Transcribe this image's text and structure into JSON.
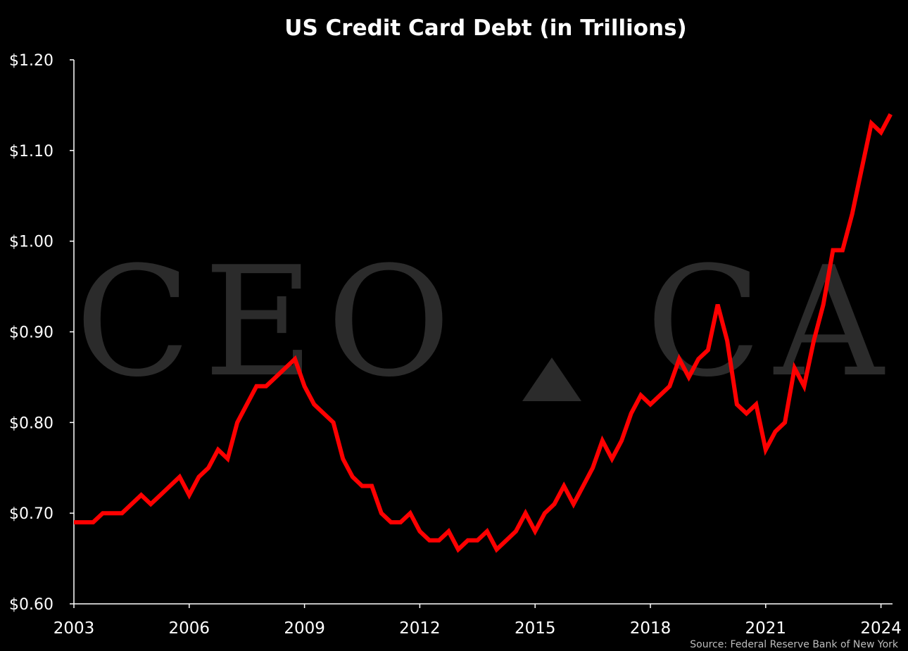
{
  "chart_data": {
    "type": "line",
    "title": "US Credit Card Debt (in Trillions)",
    "source": "Source: Federal Reserve Bank of New York",
    "watermark": "CEO CA",
    "line_color": "#ff0000",
    "background": "#000000",
    "xlim": [
      2003,
      2024.3
    ],
    "ylim": [
      0.6,
      1.2
    ],
    "x_ticks": [
      2003,
      2006,
      2009,
      2012,
      2015,
      2018,
      2021,
      2024
    ],
    "y_ticks": [
      0.6,
      0.7,
      0.8,
      0.9,
      1.0,
      1.1,
      1.2
    ],
    "y_tick_labels": [
      "$0.60",
      "$0.70",
      "$0.80",
      "$0.90",
      "$1.00",
      "$1.10",
      "$1.20"
    ],
    "x_tick_labels": [
      "2003",
      "2006",
      "2009",
      "2012",
      "2015",
      "2018",
      "2021",
      "2024"
    ],
    "grid": false,
    "series": [
      {
        "x": [
          2003.0,
          2003.25,
          2003.5,
          2003.75,
          2004.0,
          2004.25,
          2004.5,
          2004.75,
          2005.0,
          2005.25,
          2005.5,
          2005.75,
          2006.0,
          2006.25,
          2006.5,
          2006.75,
          2007.0,
          2007.25,
          2007.5,
          2007.75,
          2008.0,
          2008.25,
          2008.5,
          2008.75,
          2009.0,
          2009.25,
          2009.5,
          2009.75,
          2010.0,
          2010.25,
          2010.5,
          2010.75,
          2011.0,
          2011.25,
          2011.5,
          2011.75,
          2012.0,
          2012.25,
          2012.5,
          2012.75,
          2013.0,
          2013.25,
          2013.5,
          2013.75,
          2014.0,
          2014.25,
          2014.5,
          2014.75,
          2015.0,
          2015.25,
          2015.5,
          2015.75,
          2016.0,
          2016.25,
          2016.5,
          2016.75,
          2017.0,
          2017.25,
          2017.5,
          2017.75,
          2018.0,
          2018.25,
          2018.5,
          2018.75,
          2019.0,
          2019.25,
          2019.5,
          2019.75,
          2020.0,
          2020.25,
          2020.5,
          2020.75,
          2021.0,
          2021.25,
          2021.5,
          2021.75,
          2022.0,
          2022.25,
          2022.5,
          2022.75,
          2023.0,
          2023.25,
          2023.5,
          2023.75,
          2024.0,
          2024.25
        ],
        "values": [
          0.69,
          0.69,
          0.69,
          0.7,
          0.7,
          0.7,
          0.71,
          0.72,
          0.71,
          0.72,
          0.73,
          0.74,
          0.72,
          0.74,
          0.75,
          0.77,
          0.76,
          0.8,
          0.82,
          0.84,
          0.84,
          0.85,
          0.86,
          0.87,
          0.84,
          0.82,
          0.81,
          0.8,
          0.76,
          0.74,
          0.73,
          0.73,
          0.7,
          0.69,
          0.69,
          0.7,
          0.68,
          0.67,
          0.67,
          0.68,
          0.66,
          0.67,
          0.67,
          0.68,
          0.66,
          0.67,
          0.68,
          0.7,
          0.68,
          0.7,
          0.71,
          0.73,
          0.71,
          0.73,
          0.75,
          0.78,
          0.76,
          0.78,
          0.81,
          0.83,
          0.82,
          0.83,
          0.84,
          0.87,
          0.85,
          0.87,
          0.88,
          0.93,
          0.89,
          0.82,
          0.81,
          0.82,
          0.77,
          0.79,
          0.8,
          0.86,
          0.84,
          0.89,
          0.93,
          0.99,
          0.99,
          1.03,
          1.08,
          1.13,
          1.12,
          1.14
        ]
      }
    ]
  }
}
